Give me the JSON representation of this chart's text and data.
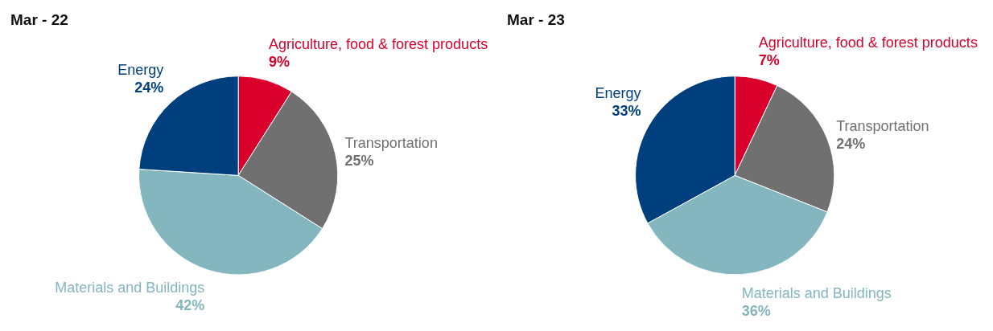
{
  "chart_data": [
    {
      "type": "pie",
      "title": "Mar - 22",
      "categories": [
        "Agriculture, food & forest products",
        "Transportation",
        "Materials and Buildings",
        "Energy"
      ],
      "values": [
        9,
        25,
        42,
        24
      ],
      "value_labels": [
        "9%",
        "25%",
        "42%",
        "24%"
      ],
      "colors": [
        "#d9002b",
        "#707070",
        "#84b6c0",
        "#003f7d"
      ]
    },
    {
      "type": "pie",
      "title": "Mar - 23",
      "categories": [
        "Agriculture, food & forest products",
        "Transportation",
        "Materials and Buildings",
        "Energy"
      ],
      "values": [
        7,
        24,
        36,
        33
      ],
      "value_labels": [
        "7%",
        "24%",
        "36%",
        "33%"
      ],
      "colors": [
        "#d9002b",
        "#707070",
        "#84b6c0",
        "#003f7d"
      ]
    }
  ]
}
